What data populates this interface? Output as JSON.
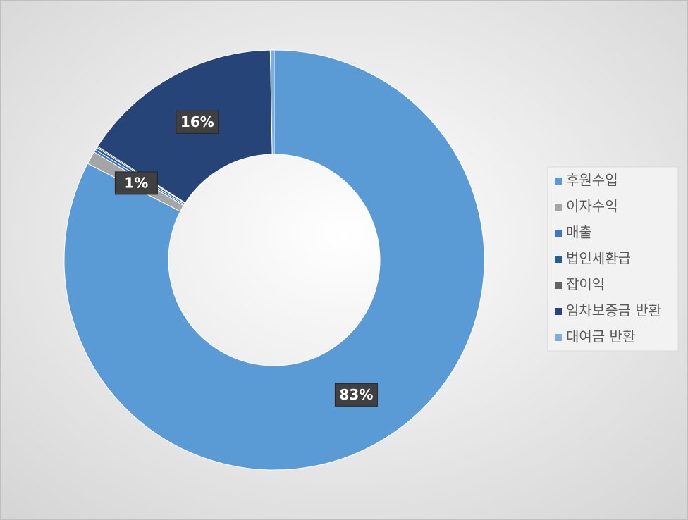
{
  "chart_data": {
    "type": "donut",
    "categories": [
      "후원수입",
      "이자수익",
      "매출",
      "법인세환급",
      "잡이익",
      "임차보증금 반환",
      "대여금 반환"
    ],
    "values": [
      82.6,
      1,
      0.2,
      0.2,
      0.1,
      15.6,
      0.3
    ],
    "value_labels": [
      "83%",
      "1%",
      null,
      null,
      null,
      "16%",
      null
    ],
    "colors": [
      "#5b9bd5",
      "#a5a5a5",
      "#4472c4",
      "#255e91",
      "#636363",
      "#264478",
      "#7cafdd"
    ],
    "legend": "right"
  }
}
